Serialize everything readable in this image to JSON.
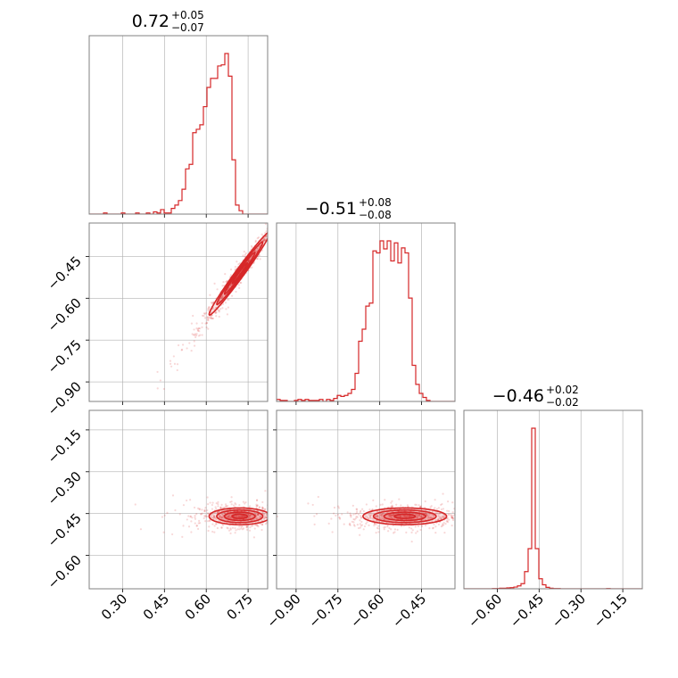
{
  "chart_data": {
    "type": "corner",
    "color": "#d62728",
    "parameters": [
      {
        "range": [
          0.18,
          0.82
        ],
        "ticks": [
          0.3,
          0.45,
          0.6,
          0.75
        ],
        "tick_labels": [
          "0.30",
          "0.45",
          "0.60",
          "0.75"
        ]
      },
      {
        "range": [
          -0.97,
          -0.33
        ],
        "ticks": [
          -0.9,
          -0.75,
          -0.6,
          -0.45
        ],
        "tick_labels": [
          "−0.90",
          "−0.75",
          "−0.60",
          "−0.45"
        ]
      },
      {
        "range": [
          -0.72,
          -0.08
        ],
        "ticks": [
          -0.6,
          -0.45,
          -0.3,
          -0.15
        ],
        "tick_labels": [
          "−0.60",
          "−0.45",
          "−0.30",
          "−0.15"
        ]
      }
    ],
    "titles": [
      {
        "median": "0.72",
        "plus": "+0.05",
        "minus": "−0.07"
      },
      {
        "median": "−0.51",
        "plus": "+0.08",
        "minus": "−0.08"
      },
      {
        "median": "−0.46",
        "plus": "+0.02",
        "minus": "−0.02"
      }
    ],
    "histograms": [
      {
        "bin_start": 0.18,
        "bin_width": 0.0128,
        "counts": [
          0,
          0,
          0,
          0,
          1,
          0,
          0,
          0,
          0,
          1,
          0,
          0,
          0,
          1,
          0,
          0,
          1,
          0,
          2,
          1,
          4,
          1,
          1,
          5,
          8,
          12,
          22,
          40,
          44,
          72,
          75,
          79,
          95,
          112,
          120,
          120,
          131,
          132,
          142,
          122,
          48,
          8,
          3,
          0,
          0,
          0,
          0,
          0,
          0,
          0
        ]
      },
      {
        "bin_start": -0.97,
        "bin_width": 0.0128,
        "counts": [
          2,
          1,
          1,
          0,
          0,
          1,
          2,
          1,
          2,
          1,
          1,
          1,
          2,
          0,
          2,
          1,
          3,
          6,
          5,
          6,
          8,
          12,
          28,
          60,
          72,
          95,
          98,
          150,
          148,
          160,
          152,
          160,
          140,
          158,
          138,
          153,
          148,
          103,
          36,
          17,
          8,
          4,
          1,
          0,
          0,
          0,
          0,
          0,
          0,
          0
        ]
      },
      {
        "bin_start": -0.72,
        "bin_width": 0.0128,
        "counts": [
          0,
          0,
          0,
          0,
          0,
          0,
          0,
          0,
          1,
          1,
          2,
          2,
          3,
          4,
          6,
          10,
          18,
          60,
          140,
          560,
          140,
          35,
          14,
          5,
          2,
          1,
          1,
          0,
          0,
          0,
          0,
          0,
          0,
          0,
          0,
          0,
          0,
          0,
          0,
          0,
          1,
          0,
          0,
          0,
          0,
          0,
          0,
          0,
          0,
          0
        ]
      }
    ],
    "pairs": [
      {
        "x_param": 0,
        "y_param": 1,
        "center": [
          0.72,
          -0.51
        ],
        "sigma": [
          0.055,
          0.075
        ],
        "correlation": 0.985
      },
      {
        "x_param": 0,
        "y_param": 2,
        "center": [
          0.72,
          -0.46
        ],
        "sigma": [
          0.055,
          0.015
        ],
        "correlation": 0.0
      },
      {
        "x_param": 1,
        "y_param": 2,
        "center": [
          -0.51,
          -0.46
        ],
        "sigma": [
          0.075,
          0.015
        ],
        "correlation": 0.0
      }
    ],
    "contour_levels_sigma": [
      0.5,
      1.0,
      1.5,
      2.0
    ],
    "grid": true
  }
}
